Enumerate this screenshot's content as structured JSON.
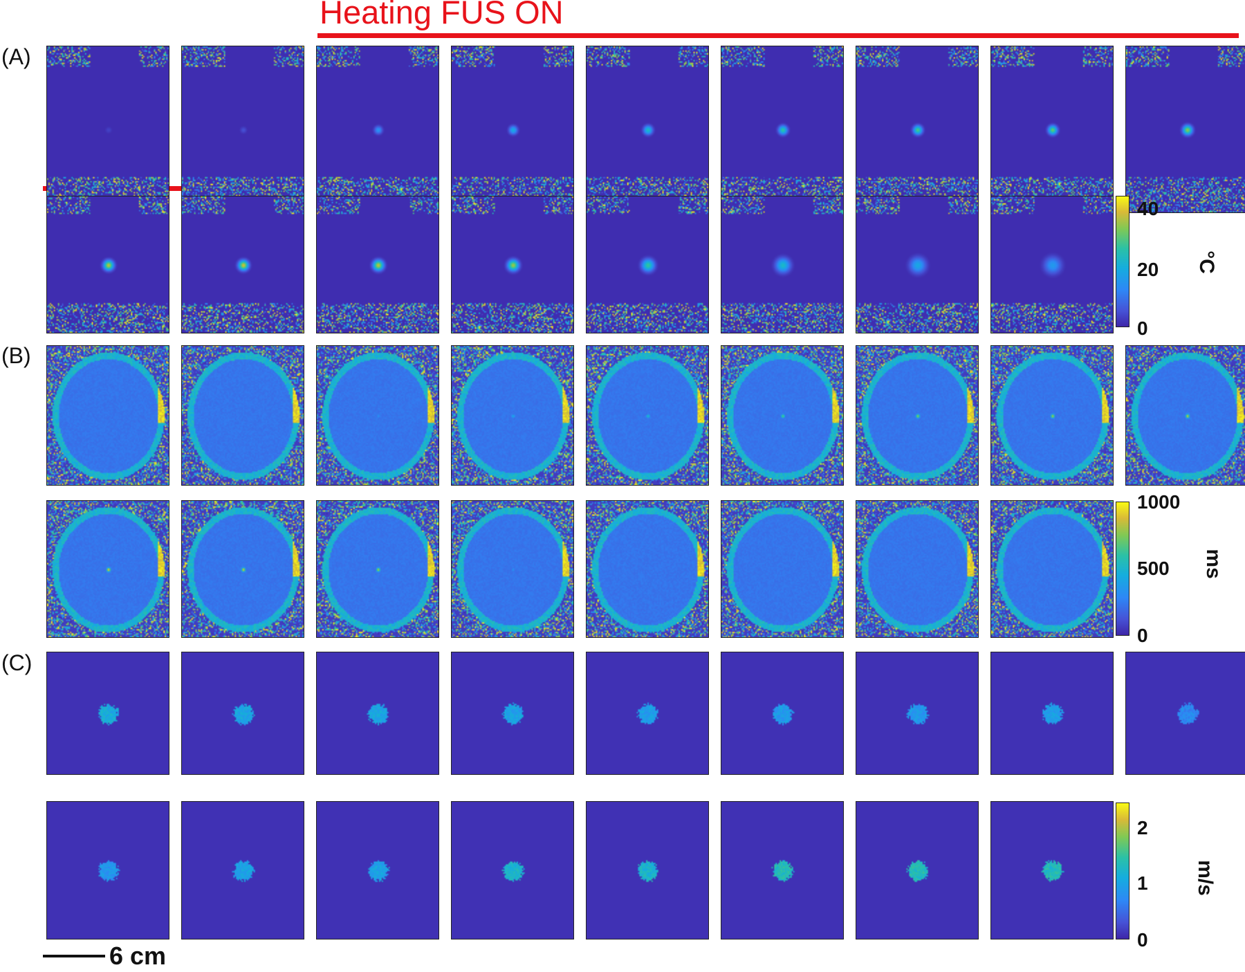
{
  "figure": {
    "heading": "Heating FUS ON",
    "scale_bar_label": "6 cm",
    "colormap": "parula",
    "colors": {
      "heating_marker": "#e8131b",
      "background_dark": "#3a2fa6",
      "high": "#f9fa14"
    }
  },
  "panels": [
    {
      "label": "(A)",
      "key": "temperature",
      "colorbar": {
        "ticks": [
          "40",
          "20",
          "0"
        ],
        "unit": "°C",
        "range": [
          0,
          40
        ]
      },
      "rows": [
        {
          "frames": 9,
          "hotspot_level": [
            0.08,
            0.12,
            0.35,
            0.45,
            0.55,
            0.62,
            0.68,
            0.72,
            0.78
          ],
          "hotspot_size": [
            0.7,
            0.7,
            0.8,
            0.85,
            0.9,
            0.9,
            0.9,
            0.9,
            0.95
          ]
        },
        {
          "frames": 8,
          "hotspot_level": [
            0.85,
            0.88,
            0.85,
            0.8,
            0.62,
            0.52,
            0.42,
            0.36
          ],
          "hotspot_size": [
            1.0,
            1.0,
            1.05,
            1.1,
            1.25,
            1.45,
            1.6,
            1.7
          ]
        }
      ]
    },
    {
      "label": "(B)",
      "key": "t1",
      "colorbar": {
        "ticks": [
          "1000",
          "500",
          "0"
        ],
        "unit": "ms",
        "range": [
          0,
          1000
        ]
      },
      "rows": [
        {
          "frames": 9,
          "hotspot_level": [
            0.0,
            0.0,
            0.35,
            0.45,
            0.55,
            0.7,
            0.8,
            0.85,
            0.9
          ]
        },
        {
          "frames": 8,
          "hotspot_level": [
            0.95,
            0.92,
            0.85,
            0.35,
            0.15,
            0.05,
            0.0,
            0.0
          ]
        }
      ]
    },
    {
      "label": "(C)",
      "key": "stiffness",
      "colorbar": {
        "ticks": [
          "2",
          "1",
          "0"
        ],
        "unit": "m/s",
        "range": [
          0,
          2.4
        ]
      },
      "rows": [
        {
          "frames": 9,
          "region_level": [
            0.45,
            0.42,
            0.42,
            0.4,
            0.38,
            0.36,
            0.36,
            0.38,
            0.3
          ]
        },
        {
          "frames": 8,
          "region_level": [
            0.35,
            0.4,
            0.4,
            0.5,
            0.5,
            0.55,
            0.55,
            0.55
          ]
        }
      ]
    }
  ]
}
